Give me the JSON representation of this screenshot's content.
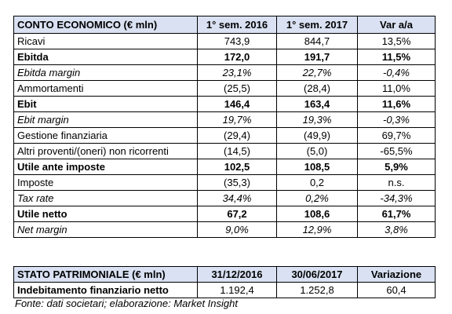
{
  "income_statement": {
    "headers": [
      "CONTO ECONOMICO (€ mln)",
      "1° sem. 2016",
      "1° sem. 2017",
      "Var a/a"
    ],
    "rows": [
      {
        "label": "Ricavi",
        "h1_2016": "743,9",
        "h1_2017": "844,7",
        "var": "13,5%",
        "style": "normal"
      },
      {
        "label": "Ebitda",
        "h1_2016": "172,0",
        "h1_2017": "191,7",
        "var": "11,5%",
        "style": "bold"
      },
      {
        "label": "Ebitda margin",
        "h1_2016": "23,1%",
        "h1_2017": "22,7%",
        "var": "-0,4%",
        "style": "italic"
      },
      {
        "label": "Ammortamenti",
        "h1_2016": "(25,5)",
        "h1_2017": "(28,4)",
        "var": "11,0%",
        "style": "normal"
      },
      {
        "label": "Ebit",
        "h1_2016": "146,4",
        "h1_2017": "163,4",
        "var": "11,6%",
        "style": "bold"
      },
      {
        "label": "Ebit margin",
        "h1_2016": "19,7%",
        "h1_2017": "19,3%",
        "var": "-0,3%",
        "style": "italic"
      },
      {
        "label": "Gestione finanziaria",
        "h1_2016": "(29,4)",
        "h1_2017": "(49,9)",
        "var": "69,7%",
        "style": "normal"
      },
      {
        "label": "Altri proventi/(oneri) non ricorrenti",
        "h1_2016": "(14,5)",
        "h1_2017": "(5,0)",
        "var": "-65,5%",
        "style": "normal"
      },
      {
        "label": "Utile ante imposte",
        "h1_2016": "102,5",
        "h1_2017": "108,5",
        "var": "5,9%",
        "style": "bold"
      },
      {
        "label": "Imposte",
        "h1_2016": "(35,3)",
        "h1_2017": "0,2",
        "var": "n.s.",
        "style": "normal"
      },
      {
        "label": "Tax rate",
        "h1_2016": "34,4%",
        "h1_2017": "0,2%",
        "var": "-34,3%",
        "style": "italic"
      },
      {
        "label": "Utile netto",
        "h1_2016": "67,2",
        "h1_2017": "108,6",
        "var": "61,7%",
        "style": "bold"
      },
      {
        "label": "Net margin",
        "h1_2016": "9,0%",
        "h1_2017": "12,9%",
        "var": "3,8%",
        "style": "italic"
      }
    ]
  },
  "balance_sheet": {
    "headers": [
      "STATO PATRIMONIALE (€ mln)",
      "31/12/2016",
      "30/06/2017",
      "Variazione"
    ],
    "rows": [
      {
        "label": "Indebitamento finanziario netto",
        "dec_2016": "1.192,4",
        "jun_2017": "1.252,8",
        "var": "60,4",
        "style": "bold-label"
      }
    ]
  },
  "footer": {
    "source": "Fonte: dati societari; elaborazione: Market Insight"
  }
}
